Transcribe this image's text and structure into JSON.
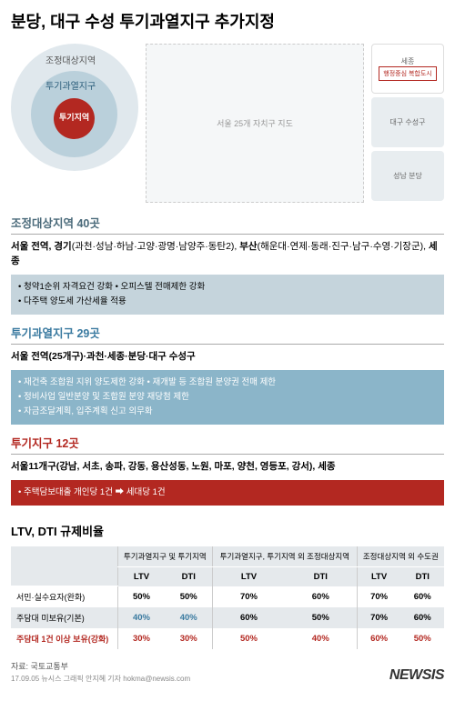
{
  "title": "분당, 대구 수성 투기과열지구 추가지정",
  "legend": {
    "outer": "조정대상지역",
    "mid": "투기과열지구",
    "inner": "투기지역"
  },
  "map_note": "서울 25개 자치구 지도",
  "side_maps": {
    "sejong": "세종",
    "sejong_inner": "행정중심\n복합도시",
    "daegu": "대구\n수성구",
    "bundang": "성남\n분당"
  },
  "section1": {
    "title": "조정대상지역 40곳",
    "sub_bold": "서울 전역, 경기",
    "sub_paren1": "(과천·성남·하남·고양·광명·남양주·동탄2), ",
    "sub_bold2": "부산",
    "sub_paren2": "(해운대·연제·동래·진구·남구·수영·기장군), ",
    "sub_bold3": "세종",
    "bullets": [
      "청약1순위 자격요건 강화 • 오피스텔 전매제한 강화",
      "다주택 양도세 가산세율 적용"
    ]
  },
  "section2": {
    "title": "투기과열지구 29곳",
    "sub": "서울 전역(25개구)·과천·세종·분당·대구 수성구",
    "bullets": [
      "재건축 조합원 지위 양도제한 강화 • 재개발 등 조합원 분양권 전매 제한",
      "정비사업 일반분양 및 조합원 분양 재당첨 제한",
      "자금조달계획, 입주계획 신고 의무화"
    ]
  },
  "section3": {
    "title": "투기지구 12곳",
    "sub": "서울11개구(강남, 서초, 송파, 강동, 용산성동, 노원, 마포, 양천, 영등포, 강서), 세종",
    "bullet": "주택담보대출 개인당 1건 ➡ 세대당 1건"
  },
  "ltv": {
    "title": "LTV, DTI 규제비율",
    "col_headers": [
      "투기과열지구 및\n투기지역",
      "투기과열지구, 투기지역 외\n조정대상지역",
      "조정대상지역 외\n수도권"
    ],
    "sub_headers": [
      "LTV",
      "DTI",
      "LTV",
      "DTI",
      "LTV",
      "DTI"
    ],
    "rows": [
      {
        "label": "서민·실수요자(완화)",
        "vals": [
          "50%",
          "50%",
          "70%",
          "60%",
          "70%",
          "60%"
        ],
        "style": "normal"
      },
      {
        "label": "주담대 미보유(기본)",
        "vals": [
          "40%",
          "40%",
          "60%",
          "50%",
          "70%",
          "60%"
        ],
        "style": "blue_first"
      },
      {
        "label": "주담대 1건 이상 보유(강화)",
        "vals": [
          "30%",
          "30%",
          "50%",
          "40%",
          "60%",
          "50%"
        ],
        "style": "red",
        "label_red": true
      }
    ]
  },
  "footer": {
    "source": "자료: 국토교통부",
    "newsis": "NEWSIS",
    "credit": "17.09.05  뉴시스 그래픽 안지혜 기자  hokma@newsis.com"
  }
}
